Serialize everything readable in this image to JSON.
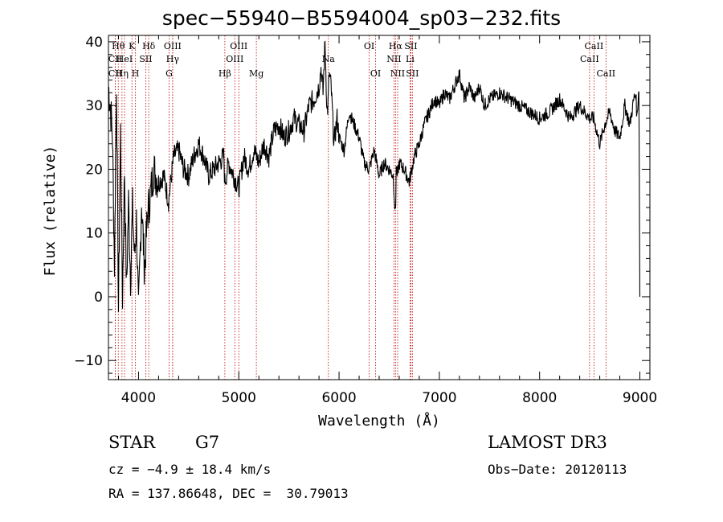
{
  "chart_data": {
    "type": "line",
    "title": "spec−55940−B5594004_sp03−232.fits",
    "xlabel": "Wavelength (Å)",
    "ylabel": "Flux (relative)",
    "xlim": [
      3700,
      9100
    ],
    "ylim": [
      -13,
      41
    ],
    "x_ticks": [
      4000,
      5000,
      6000,
      7000,
      8000,
      9000
    ],
    "x_tick_labels": [
      "4000",
      "5000",
      "6000",
      "7000",
      "8000",
      "9000"
    ],
    "y_ticks": [
      -10,
      0,
      10,
      20,
      30,
      40
    ],
    "y_tick_labels": [
      "−10",
      "0",
      "10",
      "20",
      "30",
      "40"
    ],
    "series": [
      {
        "name": "flux",
        "x": [
          3700,
          3720,
          3740,
          3760,
          3780,
          3800,
          3820,
          3840,
          3860,
          3880,
          3900,
          3920,
          3940,
          3960,
          3980,
          4000,
          4030,
          4060,
          4090,
          4120,
          4150,
          4200,
          4250,
          4300,
          4350,
          4400,
          4450,
          4500,
          4550,
          4600,
          4650,
          4700,
          4750,
          4800,
          4850,
          4860,
          4900,
          4950,
          5000,
          5050,
          5100,
          5150,
          5200,
          5250,
          5300,
          5350,
          5400,
          5450,
          5500,
          5550,
          5600,
          5650,
          5700,
          5750,
          5800,
          5820,
          5840,
          5860,
          5880,
          5890,
          5900,
          5920,
          5950,
          5980,
          6000,
          6050,
          6100,
          6150,
          6200,
          6250,
          6300,
          6350,
          6400,
          6450,
          6500,
          6540,
          6560,
          6565,
          6570,
          6580,
          6600,
          6650,
          6700,
          6750,
          6800,
          6850,
          6900,
          6950,
          7000,
          7050,
          7100,
          7150,
          7200,
          7250,
          7300,
          7350,
          7400,
          7450,
          7500,
          7600,
          7700,
          7800,
          7900,
          8000,
          8100,
          8200,
          8300,
          8400,
          8500,
          8540,
          8600,
          8650,
          8700,
          8750,
          8800,
          8850,
          8900,
          8940,
          8960,
          8970,
          8990,
          9000
        ],
        "y": [
          33,
          30,
          25,
          5,
          34,
          -2,
          26,
          0,
          20,
          1,
          15,
          3,
          14,
          6,
          12,
          -3,
          15,
          4,
          13,
          16,
          20,
          18,
          19,
          15,
          22,
          23,
          20,
          19,
          22,
          24,
          22,
          19,
          20,
          21,
          22,
          18,
          21,
          19,
          17,
          22,
          20,
          23,
          21,
          24,
          22,
          26,
          27,
          25,
          26,
          28,
          27,
          26,
          30,
          31,
          33,
          36,
          32,
          40,
          29,
          30,
          35,
          33,
          24,
          28,
          25,
          23,
          29,
          27,
          25,
          21,
          20,
          23,
          19,
          21,
          20,
          19,
          13,
          15,
          20,
          19,
          21,
          20,
          18,
          22,
          24,
          27,
          29,
          31,
          30,
          32,
          31,
          33,
          35,
          31,
          33,
          31,
          33,
          30,
          31,
          32,
          31,
          30,
          29,
          28,
          29,
          31,
          28,
          30,
          28,
          28,
          24,
          27,
          29,
          26,
          25,
          30,
          27,
          31,
          32,
          28,
          33,
          0
        ]
      }
    ],
    "spectral_lines": [
      {
        "label": "Hθ",
        "x": 3798,
        "row": 1
      },
      {
        "label": "CII",
        "x": 3768,
        "row": 2
      },
      {
        "label": "CII",
        "x": 3768,
        "row": 3
      },
      {
        "label": "Hη",
        "x": 3835,
        "row": 3
      },
      {
        "label": "HeI",
        "x": 3860,
        "row": 2
      },
      {
        "label": "K",
        "x": 3934,
        "row": 1
      },
      {
        "label": "H",
        "x": 3969,
        "row": 3
      },
      {
        "label": "SII",
        "x": 4072,
        "row": 2
      },
      {
        "label": "Hδ",
        "x": 4102,
        "row": 1
      },
      {
        "label": "OIII",
        "x": 4340,
        "row": 1
      },
      {
        "label": "Hγ",
        "x": 4340,
        "row": 2
      },
      {
        "label": "G",
        "x": 4305,
        "row": 3
      },
      {
        "label": "Hβ",
        "x": 4861,
        "row": 3
      },
      {
        "label": "OIII",
        "x": 5000,
        "row": 1
      },
      {
        "label": "OIII",
        "x": 4960,
        "row": 2
      },
      {
        "label": "Mg",
        "x": 5175,
        "row": 3
      },
      {
        "label": "Na",
        "x": 5893,
        "row": 2
      },
      {
        "label": "OI",
        "x": 6300,
        "row": 1
      },
      {
        "label": "OI",
        "x": 6364,
        "row": 3
      },
      {
        "label": "Hα",
        "x": 6563,
        "row": 1
      },
      {
        "label": "NII",
        "x": 6548,
        "row": 2
      },
      {
        "label": "NII",
        "x": 6584,
        "row": 3
      },
      {
        "label": "SII",
        "x": 6716,
        "row": 1
      },
      {
        "label": "Li",
        "x": 6708,
        "row": 2
      },
      {
        "label": "SII",
        "x": 6731,
        "row": 3
      },
      {
        "label": "CaII",
        "x": 8542,
        "row": 1
      },
      {
        "label": "CaII",
        "x": 8498,
        "row": 2
      },
      {
        "label": "CaII",
        "x": 8662,
        "row": 3
      }
    ],
    "line_color": "#000000",
    "marker_color": "#c00000"
  },
  "info": {
    "object_class": "STAR",
    "subclass": "G7",
    "survey": "LAMOST DR3",
    "redshift": "cz = −4.9 ± 18.4 km/s",
    "obs_date": "Obs−Date: 20120113",
    "coords": "RA = 137.86648, DEC =  30.79013"
  }
}
